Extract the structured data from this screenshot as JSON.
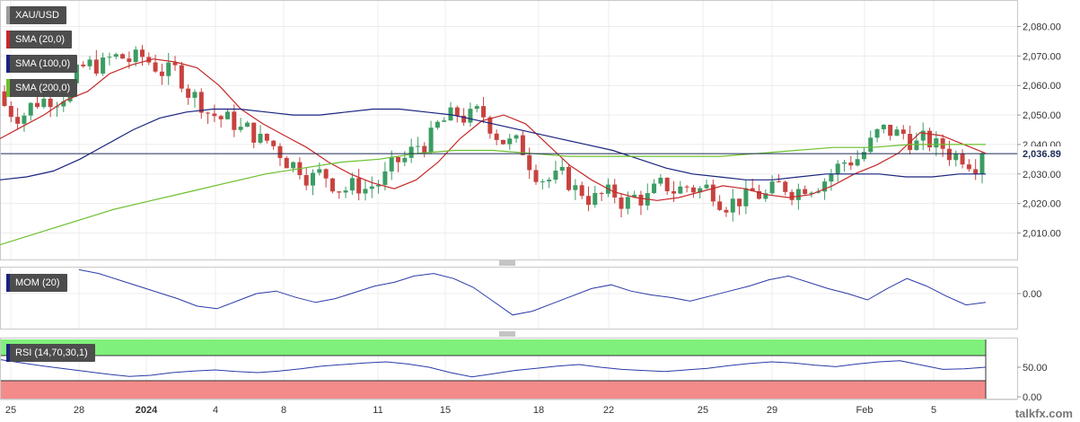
{
  "chart_data": [
    {
      "type": "candlestick",
      "symbol": "XAU/USD",
      "ylim": [
        2001,
        2089
      ],
      "y_ticks": [
        "2,010.00",
        "2,020.00",
        "2,030.00",
        "2,040.00",
        "2,050.00",
        "2,060.00",
        "2,070.00",
        "2,080.00"
      ],
      "last_price": 2036.89,
      "last_price_label": "2,036.89",
      "indicators": [
        {
          "name": "SMA (20,0)",
          "color": "#c62828",
          "values": [
            2042,
            2046,
            2050,
            2055,
            2058,
            2064,
            2067,
            2069,
            2068,
            2066,
            2060,
            2052,
            2047,
            2043,
            2039,
            2034,
            2030,
            2027,
            2025,
            2028,
            2034,
            2042,
            2048,
            2050,
            2047,
            2040,
            2033,
            2028,
            2024,
            2022,
            2021,
            2022,
            2024,
            2026,
            2025,
            2023,
            2022,
            2023,
            2026,
            2030,
            2033,
            2037,
            2044,
            2043,
            2040,
            2037
          ]
        },
        {
          "name": "SMA (100,0)",
          "color": "#1a237e",
          "values": [
            2028,
            2029,
            2031,
            2035,
            2040,
            2045,
            2049,
            2051,
            2052,
            2052,
            2051,
            2050,
            2050,
            2051,
            2052,
            2052,
            2051,
            2050,
            2048,
            2046,
            2044,
            2042,
            2040,
            2038,
            2035,
            2032,
            2030,
            2029,
            2028,
            2028,
            2029,
            2030,
            2030,
            2030,
            2029,
            2029,
            2030,
            2030
          ]
        },
        {
          "name": "SMA (200,0)",
          "color": "#6bbf2d",
          "values": [
            2006,
            2010,
            2014,
            2018,
            2021,
            2024,
            2027,
            2030,
            2032,
            2034,
            2035,
            2037,
            2038,
            2038,
            2037,
            2036,
            2036,
            2036,
            2036,
            2036,
            2037,
            2038,
            2039,
            2039,
            2040,
            2040,
            2040
          ]
        }
      ]
    },
    {
      "type": "line",
      "name": "MOM (20)",
      "y_ticks": [
        "0.00"
      ],
      "values": [
        0.95,
        0.8,
        0.55,
        0.3,
        0.05,
        -0.2,
        -0.5,
        -0.6,
        -0.3,
        0.0,
        0.1,
        -0.15,
        -0.35,
        -0.2,
        0.05,
        0.3,
        0.45,
        0.7,
        0.8,
        0.6,
        0.25,
        -0.3,
        -0.85,
        -0.7,
        -0.4,
        -0.1,
        0.2,
        0.35,
        0.1,
        -0.05,
        -0.15,
        -0.3,
        -0.1,
        0.1,
        0.3,
        0.55,
        0.7,
        0.45,
        0.2,
        0.0,
        -0.25,
        0.2,
        0.6,
        0.3,
        -0.1,
        -0.45,
        -0.35
      ]
    },
    {
      "type": "line",
      "name": "RSI (14,70,30,1)",
      "y_ticks": [
        "50.00",
        "0.00"
      ],
      "ylim": [
        0,
        100
      ],
      "upper_band": 70,
      "lower_band": 30,
      "values": [
        64,
        58,
        52,
        47,
        42,
        37,
        33,
        35,
        40,
        43,
        45,
        42,
        40,
        43,
        47,
        52,
        55,
        58,
        60,
        56,
        50,
        40,
        32,
        38,
        44,
        48,
        52,
        55,
        50,
        46,
        44,
        42,
        45,
        48,
        53,
        57,
        60,
        58,
        54,
        51,
        56,
        60,
        62,
        54,
        46,
        47,
        50
      ]
    }
  ],
  "x_axis": {
    "labels": [
      {
        "t": "25",
        "x": 12
      },
      {
        "t": "28",
        "x": 88
      },
      {
        "t": "2024",
        "x": 163
      },
      {
        "t": "4",
        "x": 240
      },
      {
        "t": "8",
        "x": 316
      },
      {
        "t": "11",
        "x": 421
      },
      {
        "t": "15",
        "x": 496
      },
      {
        "t": "18",
        "x": 600
      },
      {
        "t": "22",
        "x": 678
      },
      {
        "t": "25",
        "x": 783
      },
      {
        "t": "29",
        "x": 860
      },
      {
        "t": "Feb",
        "x": 963
      },
      {
        "t": "5",
        "x": 1040
      }
    ]
  },
  "brand": "talkfx.com",
  "colors": {
    "up": "#3b9c63",
    "down": "#c8423f",
    "grid": "#ececec",
    "price_line": "#1c2b55",
    "rsi_upper": "#80f07c",
    "rsi_lower": "#f38b8b"
  }
}
